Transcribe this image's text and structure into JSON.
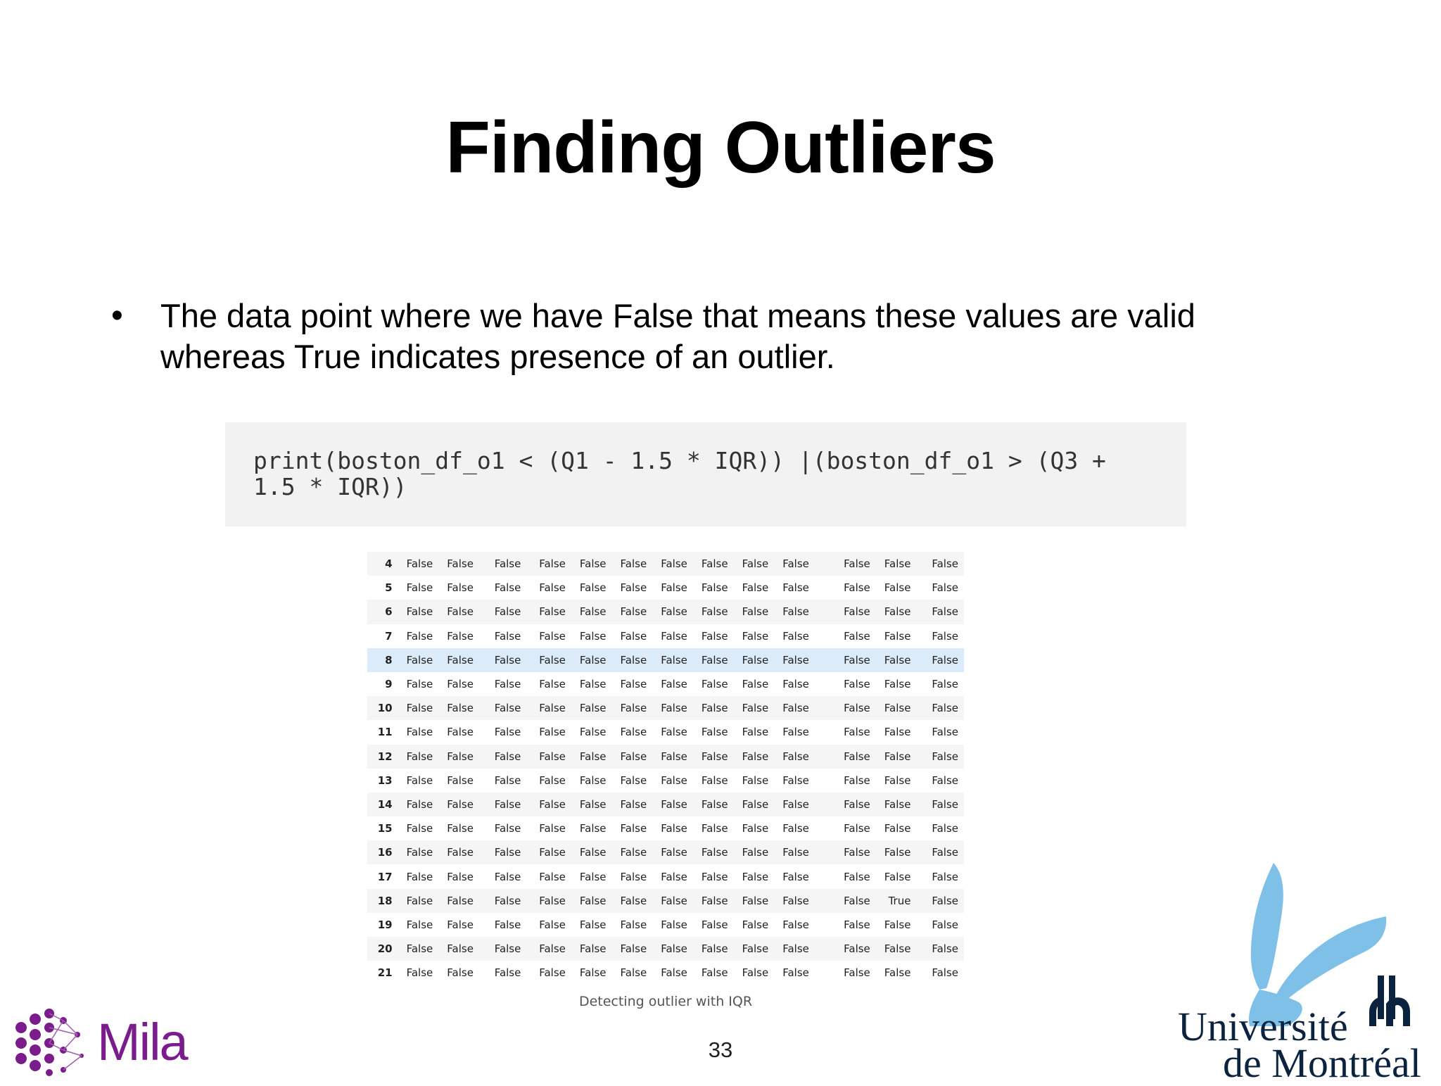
{
  "slide": {
    "title": "Finding Outliers",
    "bullet": "The data point where we have False that means these values are valid whereas True indicates presence of an outlier.",
    "code": "print(boston_df_o1 < (Q1 - 1.5 * IQR)) |(boston_df_o1 > (Q3 + 1.5 * IQR))",
    "caption": "Detecting outlier with IQR",
    "page_number": "33"
  },
  "table": {
    "highlight_row": "8",
    "rows": [
      {
        "idx": "4",
        "cells": [
          "False",
          "False",
          "False",
          "False",
          "False",
          "False",
          "False",
          "False",
          "False",
          "False",
          "False",
          "False",
          "False"
        ]
      },
      {
        "idx": "5",
        "cells": [
          "False",
          "False",
          "False",
          "False",
          "False",
          "False",
          "False",
          "False",
          "False",
          "False",
          "False",
          "False",
          "False"
        ]
      },
      {
        "idx": "6",
        "cells": [
          "False",
          "False",
          "False",
          "False",
          "False",
          "False",
          "False",
          "False",
          "False",
          "False",
          "False",
          "False",
          "False"
        ]
      },
      {
        "idx": "7",
        "cells": [
          "False",
          "False",
          "False",
          "False",
          "False",
          "False",
          "False",
          "False",
          "False",
          "False",
          "False",
          "False",
          "False"
        ]
      },
      {
        "idx": "8",
        "cells": [
          "False",
          "False",
          "False",
          "False",
          "False",
          "False",
          "False",
          "False",
          "False",
          "False",
          "False",
          "False",
          "False"
        ]
      },
      {
        "idx": "9",
        "cells": [
          "False",
          "False",
          "False",
          "False",
          "False",
          "False",
          "False",
          "False",
          "False",
          "False",
          "False",
          "False",
          "False"
        ]
      },
      {
        "idx": "10",
        "cells": [
          "False",
          "False",
          "False",
          "False",
          "False",
          "False",
          "False",
          "False",
          "False",
          "False",
          "False",
          "False",
          "False"
        ]
      },
      {
        "idx": "11",
        "cells": [
          "False",
          "False",
          "False",
          "False",
          "False",
          "False",
          "False",
          "False",
          "False",
          "False",
          "False",
          "False",
          "False"
        ]
      },
      {
        "idx": "12",
        "cells": [
          "False",
          "False",
          "False",
          "False",
          "False",
          "False",
          "False",
          "False",
          "False",
          "False",
          "False",
          "False",
          "False"
        ]
      },
      {
        "idx": "13",
        "cells": [
          "False",
          "False",
          "False",
          "False",
          "False",
          "False",
          "False",
          "False",
          "False",
          "False",
          "False",
          "False",
          "False"
        ]
      },
      {
        "idx": "14",
        "cells": [
          "False",
          "False",
          "False",
          "False",
          "False",
          "False",
          "False",
          "False",
          "False",
          "False",
          "False",
          "False",
          "False"
        ]
      },
      {
        "idx": "15",
        "cells": [
          "False",
          "False",
          "False",
          "False",
          "False",
          "False",
          "False",
          "False",
          "False",
          "False",
          "False",
          "False",
          "False"
        ]
      },
      {
        "idx": "16",
        "cells": [
          "False",
          "False",
          "False",
          "False",
          "False",
          "False",
          "False",
          "False",
          "False",
          "False",
          "False",
          "False",
          "False"
        ]
      },
      {
        "idx": "17",
        "cells": [
          "False",
          "False",
          "False",
          "False",
          "False",
          "False",
          "False",
          "False",
          "False",
          "False",
          "False",
          "False",
          "False"
        ]
      },
      {
        "idx": "18",
        "cells": [
          "False",
          "False",
          "False",
          "False",
          "False",
          "False",
          "False",
          "False",
          "False",
          "False",
          "False",
          "True",
          "False"
        ]
      },
      {
        "idx": "19",
        "cells": [
          "False",
          "False",
          "False",
          "False",
          "False",
          "False",
          "False",
          "False",
          "False",
          "False",
          "False",
          "False",
          "False"
        ]
      },
      {
        "idx": "20",
        "cells": [
          "False",
          "False",
          "False",
          "False",
          "False",
          "False",
          "False",
          "False",
          "False",
          "False",
          "False",
          "False",
          "False"
        ]
      },
      {
        "idx": "21",
        "cells": [
          "False",
          "False",
          "False",
          "False",
          "False",
          "False",
          "False",
          "False",
          "False",
          "False",
          "False",
          "False",
          "False"
        ]
      }
    ]
  },
  "logos": {
    "mila": {
      "text": "Mila",
      "color": "#7b1c8c",
      "icon": "mila-dots-icon"
    },
    "udem": {
      "line1": "Université",
      "line2": "de Montréal",
      "color": "#0c2340",
      "accent": "#7fc0e8",
      "icon": "udem-bird-icon"
    }
  }
}
